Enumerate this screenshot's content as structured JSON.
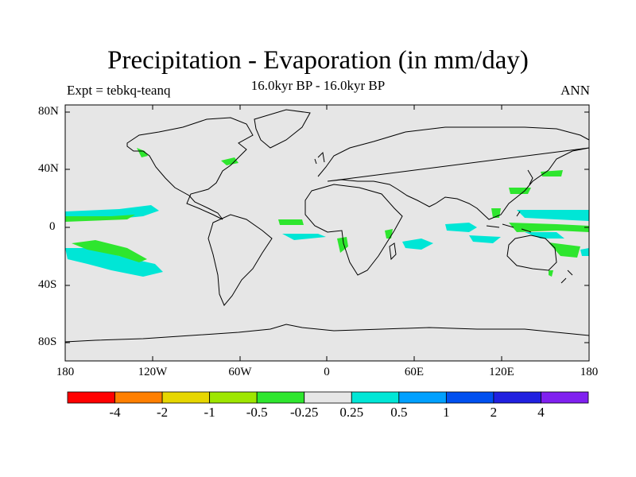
{
  "title": "Precipitation - Evaporation (in mm/day)",
  "subtitle": {
    "left": "Expt = tebkq-teanq",
    "center": "16.0kyr BP - 16.0kyr BP",
    "right": "ANN"
  },
  "latitude_labels": [
    "80N",
    "40N",
    "0",
    "40S",
    "80S"
  ],
  "longitude_labels": [
    "180",
    "120W",
    "60W",
    "0",
    "60E",
    "120E",
    "180"
  ],
  "colorbar": {
    "colors": [
      "#ff0000",
      "#ff7f00",
      "#e6d600",
      "#9ee600",
      "#2ee62e",
      "#e6e6e6",
      "#00e6d6",
      "#00a0ff",
      "#0050f0",
      "#2020e0",
      "#8020f0"
    ],
    "labels": [
      "-4",
      "-2",
      "-1",
      "-0.5",
      "-0.25",
      "0.25",
      "0.5",
      "1",
      "2",
      "4"
    ]
  },
  "colors": {
    "ocean_background": "#e6e6e6",
    "coastline": "#000000"
  }
}
